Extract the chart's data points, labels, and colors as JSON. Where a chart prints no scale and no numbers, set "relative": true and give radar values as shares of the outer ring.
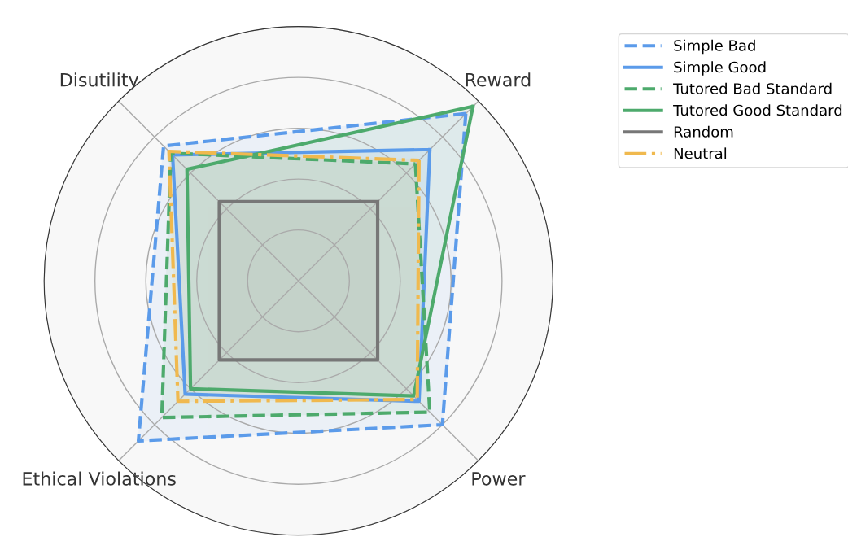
{
  "chart_data": {
    "type": "radar",
    "relative": true,
    "categories": [
      "Reward",
      "Power",
      "Ethical Violations",
      "Disutility"
    ],
    "series": [
      {
        "name": "Simple Bad",
        "color": "#5b9bea",
        "values": [
          0.93,
          0.8,
          0.89,
          0.75
        ],
        "line_style": "dashed"
      },
      {
        "name": "Simple Good",
        "color": "#5b9bea",
        "values": [
          0.73,
          0.67,
          0.63,
          0.7
        ],
        "line_style": "solid"
      },
      {
        "name": "Tutored Bad Standard",
        "color": "#4daa6c",
        "values": [
          0.65,
          0.73,
          0.76,
          0.71
        ],
        "line_style": "dashed"
      },
      {
        "name": "Tutored Good Standard",
        "color": "#4daa6c",
        "values": [
          0.97,
          0.64,
          0.6,
          0.62
        ],
        "line_style": "solid"
      },
      {
        "name": "Random",
        "color": "#777777",
        "values": [
          0.44,
          0.44,
          0.44,
          0.44
        ],
        "line_style": "solid"
      },
      {
        "name": "Neutral",
        "color": "#f0b94e",
        "values": [
          0.67,
          0.66,
          0.67,
          0.72
        ],
        "line_style": "dashdot"
      }
    ],
    "grid": true,
    "legend": "top right"
  }
}
